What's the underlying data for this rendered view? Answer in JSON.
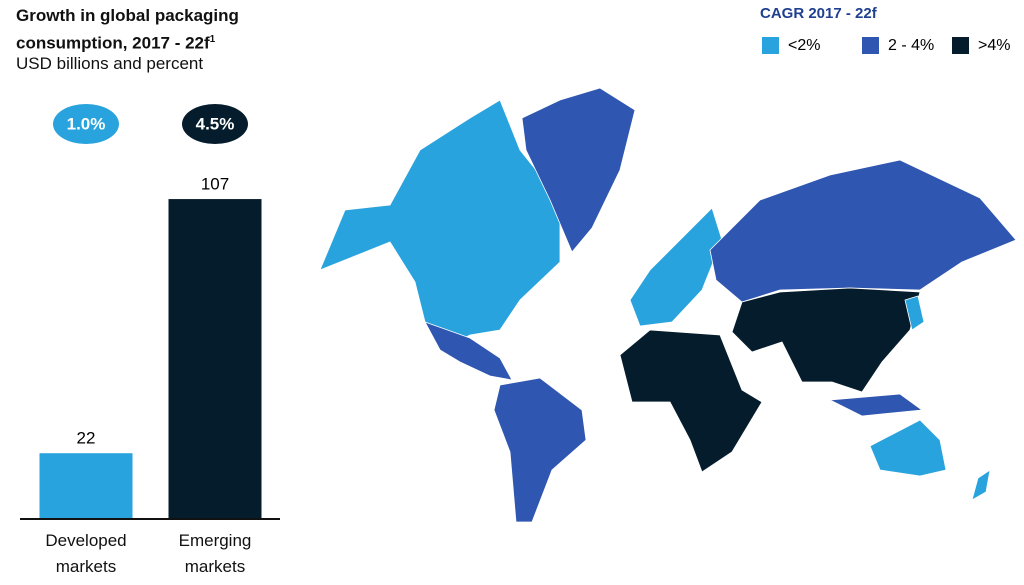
{
  "chart_data": [
    {
      "type": "bar",
      "title": "Growth in global packaging consumption, 2017 - 22f",
      "title_note": "1",
      "subtitle": "USD billions and percent",
      "categories": [
        "Developed markets",
        "Emerging markets"
      ],
      "values": [
        22,
        107
      ],
      "colors": [
        "#29a3dd",
        "#051c2c"
      ],
      "cagr": [
        1.0,
        4.5
      ],
      "cagr_labels": [
        "1.0%",
        "4.5%"
      ]
    },
    {
      "type": "map",
      "title": "CAGR 2017 - 22f",
      "legend": [
        {
          "label": "<2%",
          "color": "#29a3dd"
        },
        {
          "label": "2 - 4%",
          "color": "#2f56b0"
        },
        {
          "label": ">4%",
          "color": "#051c2c"
        }
      ]
    }
  ]
}
